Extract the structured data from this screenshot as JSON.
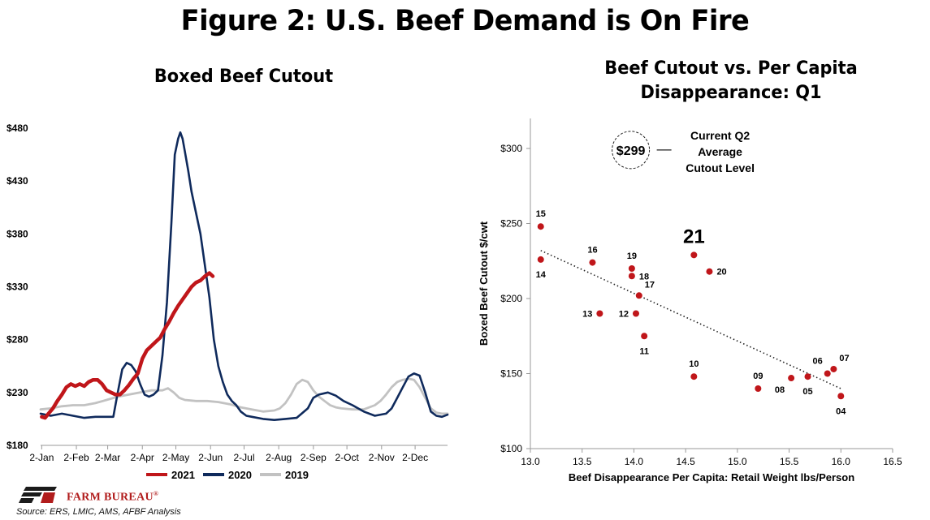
{
  "page": {
    "title": "Figure 2: U.S. Beef Demand is On Fire",
    "logo_text": "FARM BUREAU",
    "logo_mark": "®",
    "source": "Source:  ERS, LMIC, AMS, AFBF Analysis"
  },
  "colors": {
    "s2021": "#c0161a",
    "s2020": "#0f2a5c",
    "s2019": "#c2c2c2",
    "dot": "#c0161a"
  },
  "chart_data": [
    {
      "type": "line",
      "title": "Boxed Beef Cutout",
      "xlabel": "",
      "ylabel": "",
      "x_unit": "day of year",
      "xlim": [
        1,
        365
      ],
      "ylim": [
        180,
        480
      ],
      "y_ticks": [
        180,
        230,
        280,
        330,
        380,
        430,
        480
      ],
      "y_tick_labels": [
        "$180",
        "$230",
        "$280",
        "$330",
        "$380",
        "$430",
        "$480"
      ],
      "x_ticks": [
        2,
        33,
        61,
        92,
        122,
        153,
        183,
        214,
        245,
        275,
        306,
        336
      ],
      "x_tick_labels": [
        "2-Jan",
        "2-Feb",
        "2-Mar",
        "2-Apr",
        "2-May",
        "2-Jun",
        "2-Jul",
        "2-Aug",
        "2-Sep",
        "2-Oct",
        "2-Nov",
        "2-Dec"
      ],
      "grid": false,
      "legend_position": "bottom",
      "series": [
        {
          "name": "2021",
          "x": [
            2,
            5,
            8,
            12,
            16,
            20,
            24,
            28,
            32,
            36,
            40,
            44,
            48,
            52,
            56,
            60,
            64,
            68,
            72,
            76,
            80,
            84,
            88,
            92,
            96,
            100,
            104,
            108,
            112,
            116,
            120,
            124,
            128,
            132,
            136,
            140,
            144,
            148,
            152,
            155
          ],
          "y": [
            207,
            206,
            210,
            215,
            222,
            228,
            235,
            238,
            236,
            238,
            236,
            240,
            242,
            242,
            238,
            232,
            230,
            228,
            228,
            232,
            237,
            243,
            248,
            262,
            270,
            274,
            278,
            282,
            290,
            297,
            305,
            312,
            318,
            324,
            330,
            334,
            336,
            340,
            343,
            340
          ]
        },
        {
          "name": "2020",
          "x": [
            1,
            10,
            20,
            30,
            40,
            50,
            60,
            66,
            70,
            74,
            78,
            82,
            86,
            90,
            94,
            98,
            102,
            106,
            110,
            114,
            118,
            121,
            124,
            126,
            128,
            130,
            133,
            136,
            140,
            144,
            148,
            152,
            156,
            160,
            164,
            168,
            172,
            176,
            180,
            185,
            190,
            200,
            210,
            220,
            230,
            240,
            245,
            250,
            258,
            265,
            272,
            280,
            290,
            300,
            310,
            315,
            320,
            325,
            330,
            335,
            340,
            345,
            350,
            355,
            360,
            365
          ],
          "y": [
            210,
            208,
            210,
            208,
            206,
            207,
            207,
            207,
            230,
            252,
            258,
            256,
            250,
            238,
            228,
            226,
            228,
            232,
            265,
            315,
            390,
            455,
            470,
            476,
            470,
            458,
            440,
            420,
            400,
            380,
            350,
            320,
            280,
            255,
            240,
            228,
            222,
            218,
            212,
            208,
            207,
            205,
            204,
            205,
            206,
            215,
            225,
            228,
            230,
            227,
            222,
            218,
            212,
            208,
            210,
            215,
            225,
            235,
            245,
            248,
            246,
            230,
            212,
            208,
            207,
            209
          ]
        },
        {
          "name": "2019",
          "x": [
            1,
            10,
            20,
            30,
            40,
            50,
            60,
            70,
            80,
            90,
            100,
            110,
            115,
            120,
            125,
            130,
            140,
            150,
            160,
            170,
            180,
            190,
            200,
            210,
            215,
            220,
            225,
            230,
            235,
            240,
            245,
            250,
            255,
            260,
            265,
            270,
            280,
            290,
            300,
            305,
            310,
            315,
            320,
            325,
            330,
            335,
            340,
            345,
            350,
            355,
            360,
            365
          ],
          "y": [
            214,
            215,
            217,
            218,
            218,
            220,
            223,
            226,
            228,
            230,
            232,
            232,
            234,
            230,
            225,
            223,
            222,
            222,
            221,
            219,
            216,
            214,
            212,
            213,
            215,
            220,
            228,
            238,
            242,
            240,
            232,
            226,
            222,
            218,
            216,
            215,
            214,
            214,
            218,
            222,
            228,
            235,
            240,
            242,
            243,
            242,
            235,
            225,
            215,
            211,
            210,
            210
          ]
        }
      ]
    },
    {
      "type": "scatter",
      "title": "Beef Cutout vs. Per Capita Disappearance: Q1",
      "xlabel": "Beef Disappearance Per Capita: Retail Weight lbs/Person",
      "ylabel": "Boxed Beef Cutout $/cwt",
      "xlim": [
        13.0,
        16.5
      ],
      "ylim": [
        100,
        320
      ],
      "x_ticks": [
        13.0,
        13.5,
        14.0,
        14.5,
        15.0,
        15.5,
        16.0,
        16.5
      ],
      "x_tick_labels": [
        "13.0",
        "13.5",
        "14.0",
        "14.5",
        "15.0",
        "15.5",
        "16.0",
        "16.5"
      ],
      "y_ticks": [
        100,
        150,
        200,
        250,
        300
      ],
      "y_tick_labels": [
        "$100",
        "$150",
        "$200",
        "$250",
        "$300"
      ],
      "grid": false,
      "points": [
        {
          "label": "15",
          "x": 13.1,
          "y": 248,
          "label_pos": "above"
        },
        {
          "label": "14",
          "x": 13.1,
          "y": 226,
          "label_pos": "below"
        },
        {
          "label": "16",
          "x": 13.6,
          "y": 224,
          "label_pos": "above"
        },
        {
          "label": "13",
          "x": 13.67,
          "y": 190,
          "label_pos": "left"
        },
        {
          "label": "19",
          "x": 13.98,
          "y": 220,
          "label_pos": "above"
        },
        {
          "label": "18",
          "x": 13.98,
          "y": 215,
          "label_pos": "right"
        },
        {
          "label": "17",
          "x": 14.05,
          "y": 202,
          "label_pos": "above-right"
        },
        {
          "label": "12",
          "x": 14.02,
          "y": 190,
          "label_pos": "left"
        },
        {
          "label": "11",
          "x": 14.1,
          "y": 175,
          "label_pos": "below"
        },
        {
          "label": "21",
          "x": 14.58,
          "y": 229,
          "label_pos": "above-big"
        },
        {
          "label": "20",
          "x": 14.73,
          "y": 218,
          "label_pos": "right"
        },
        {
          "label": "10",
          "x": 14.58,
          "y": 148,
          "label_pos": "above"
        },
        {
          "label": "09",
          "x": 15.2,
          "y": 140,
          "label_pos": "above"
        },
        {
          "label": "08",
          "x": 15.52,
          "y": 147,
          "label_pos": "below-left"
        },
        {
          "label": "05",
          "x": 15.68,
          "y": 148,
          "label_pos": "below"
        },
        {
          "label": "06",
          "x": 15.87,
          "y": 150,
          "label_pos": "above-left"
        },
        {
          "label": "07",
          "x": 15.93,
          "y": 153,
          "label_pos": "above-right"
        },
        {
          "label": "04",
          "x": 16.0,
          "y": 135,
          "label_pos": "below"
        }
      ],
      "trendline": {
        "style": "dotted",
        "x": [
          13.1,
          16.0
        ],
        "y": [
          232,
          140
        ]
      },
      "annotation": {
        "value": "$299",
        "x": 13.97,
        "y": 299,
        "lines": [
          "Current Q2",
          "Average",
          "Cutout Level"
        ]
      }
    }
  ]
}
